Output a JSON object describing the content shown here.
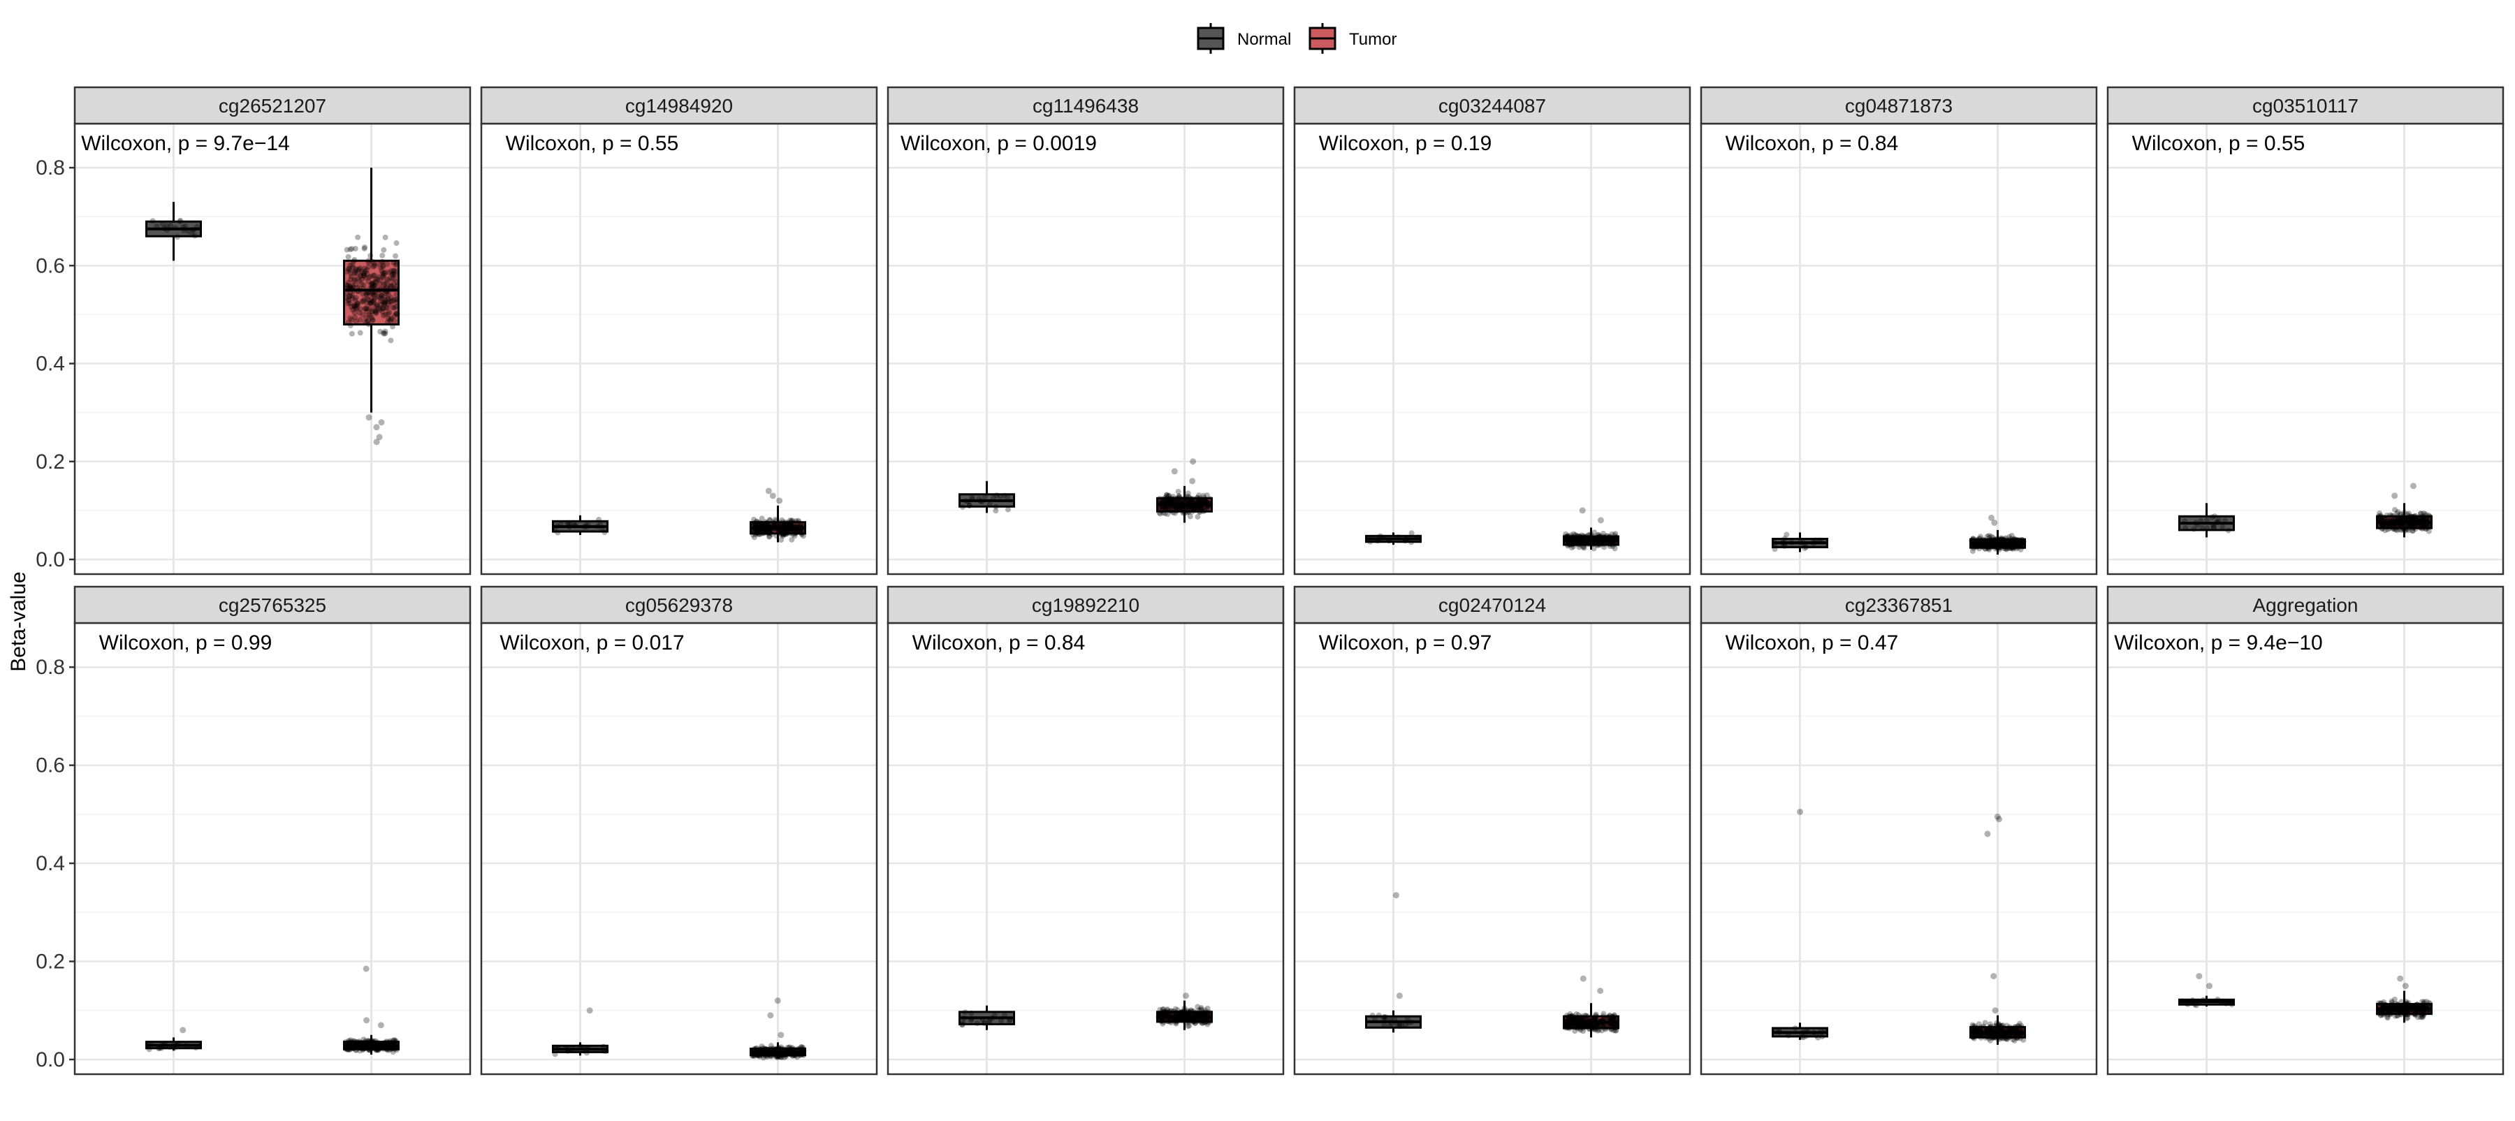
{
  "chart_data": {
    "type": "box",
    "ylabel": "Beta-value",
    "ylim": [
      -0.03,
      0.89
    ],
    "yticks": [
      0.0,
      0.2,
      0.4,
      0.6,
      0.8
    ],
    "ytick_labels": [
      "0.0",
      "0.2",
      "0.4",
      "0.6",
      "0.8"
    ],
    "grid": true,
    "legend": {
      "placement": "top-center",
      "entries": [
        {
          "name": "Normal",
          "color": "#555555"
        },
        {
          "name": "Tumor",
          "color": "#CC5B5F"
        }
      ]
    },
    "groups": [
      "Normal",
      "Tumor"
    ],
    "panels": [
      {
        "title": "cg26521207",
        "annotation": "Wilcoxon, p = 9.7e−14",
        "normal": {
          "min": 0.61,
          "q1": 0.66,
          "median": 0.675,
          "q3": 0.69,
          "max": 0.73,
          "n": 20,
          "outliers": []
        },
        "tumor": {
          "min": 0.3,
          "q1": 0.48,
          "median": 0.55,
          "q3": 0.61,
          "max": 0.8,
          "n": 300,
          "outliers": [
            0.24,
            0.25,
            0.27,
            0.28,
            0.29
          ]
        }
      },
      {
        "title": "cg14984920",
        "annotation": "Wilcoxon, p = 0.55",
        "normal": {
          "min": 0.05,
          "q1": 0.057,
          "median": 0.067,
          "q3": 0.078,
          "max": 0.09,
          "n": 20,
          "outliers": []
        },
        "tumor": {
          "min": 0.035,
          "q1": 0.053,
          "median": 0.064,
          "q3": 0.076,
          "max": 0.11,
          "n": 300,
          "outliers": [
            0.12,
            0.13,
            0.14
          ]
        }
      },
      {
        "title": "cg11496438",
        "annotation": "Wilcoxon, p = 0.0019",
        "normal": {
          "min": 0.095,
          "q1": 0.108,
          "median": 0.12,
          "q3": 0.133,
          "max": 0.16,
          "n": 20,
          "outliers": []
        },
        "tumor": {
          "min": 0.075,
          "q1": 0.098,
          "median": 0.112,
          "q3": 0.125,
          "max": 0.15,
          "n": 300,
          "outliers": [
            0.16,
            0.18,
            0.2
          ]
        }
      },
      {
        "title": "cg03244087",
        "annotation": "Wilcoxon, p = 0.19",
        "normal": {
          "min": 0.03,
          "q1": 0.036,
          "median": 0.042,
          "q3": 0.048,
          "max": 0.055,
          "n": 20,
          "outliers": []
        },
        "tumor": {
          "min": 0.02,
          "q1": 0.03,
          "median": 0.039,
          "q3": 0.047,
          "max": 0.065,
          "n": 300,
          "outliers": [
            0.08,
            0.1
          ]
        }
      },
      {
        "title": "cg04871873",
        "annotation": "Wilcoxon, p = 0.84",
        "normal": {
          "min": 0.015,
          "q1": 0.025,
          "median": 0.034,
          "q3": 0.042,
          "max": 0.055,
          "n": 20,
          "outliers": []
        },
        "tumor": {
          "min": 0.01,
          "q1": 0.024,
          "median": 0.033,
          "q3": 0.041,
          "max": 0.06,
          "n": 300,
          "outliers": [
            0.075,
            0.085
          ]
        }
      },
      {
        "title": "cg03510117",
        "annotation": "Wilcoxon, p = 0.55",
        "normal": {
          "min": 0.045,
          "q1": 0.06,
          "median": 0.074,
          "q3": 0.088,
          "max": 0.115,
          "n": 20,
          "outliers": []
        },
        "tumor": {
          "min": 0.045,
          "q1": 0.064,
          "median": 0.076,
          "q3": 0.088,
          "max": 0.115,
          "n": 300,
          "outliers": [
            0.13,
            0.15
          ]
        }
      },
      {
        "title": "cg25765325",
        "annotation": "Wilcoxon, p = 0.99",
        "normal": {
          "min": 0.018,
          "q1": 0.023,
          "median": 0.029,
          "q3": 0.036,
          "max": 0.045,
          "n": 20,
          "outliers": [
            0.06
          ]
        },
        "tumor": {
          "min": 0.01,
          "q1": 0.021,
          "median": 0.028,
          "q3": 0.036,
          "max": 0.05,
          "n": 300,
          "outliers": [
            0.07,
            0.08,
            0.185
          ]
        }
      },
      {
        "title": "cg05629378",
        "annotation": "Wilcoxon, p = 0.017",
        "normal": {
          "min": 0.008,
          "q1": 0.015,
          "median": 0.021,
          "q3": 0.028,
          "max": 0.035,
          "n": 20,
          "outliers": [
            0.1
          ]
        },
        "tumor": {
          "min": 0.002,
          "q1": 0.009,
          "median": 0.015,
          "q3": 0.022,
          "max": 0.035,
          "n": 300,
          "outliers": [
            0.05,
            0.09,
            0.12
          ]
        }
      },
      {
        "title": "cg19892210",
        "annotation": "Wilcoxon, p = 0.84",
        "normal": {
          "min": 0.06,
          "q1": 0.072,
          "median": 0.085,
          "q3": 0.097,
          "max": 0.11,
          "n": 20,
          "outliers": []
        },
        "tumor": {
          "min": 0.06,
          "q1": 0.077,
          "median": 0.087,
          "q3": 0.097,
          "max": 0.12,
          "n": 300,
          "outliers": [
            0.13
          ]
        }
      },
      {
        "title": "cg02470124",
        "annotation": "Wilcoxon, p = 0.97",
        "normal": {
          "min": 0.055,
          "q1": 0.065,
          "median": 0.077,
          "q3": 0.088,
          "max": 0.1,
          "n": 20,
          "outliers": [
            0.13,
            0.335
          ]
        },
        "tumor": {
          "min": 0.045,
          "q1": 0.064,
          "median": 0.076,
          "q3": 0.088,
          "max": 0.115,
          "n": 300,
          "outliers": [
            0.14,
            0.165
          ]
        }
      },
      {
        "title": "cg23367851",
        "annotation": "Wilcoxon, p = 0.47",
        "normal": {
          "min": 0.04,
          "q1": 0.047,
          "median": 0.055,
          "q3": 0.064,
          "max": 0.075,
          "n": 20,
          "outliers": [
            0.505
          ]
        },
        "tumor": {
          "min": 0.03,
          "q1": 0.045,
          "median": 0.055,
          "q3": 0.066,
          "max": 0.09,
          "n": 300,
          "outliers": [
            0.1,
            0.17,
            0.46,
            0.49,
            0.495
          ]
        }
      },
      {
        "title": "Aggregation",
        "annotation": "Wilcoxon, p = 9.4e−10",
        "normal": {
          "min": 0.108,
          "q1": 0.112,
          "median": 0.118,
          "q3": 0.122,
          "max": 0.13,
          "n": 20,
          "outliers": [
            0.17,
            0.15
          ]
        },
        "tumor": {
          "min": 0.075,
          "q1": 0.093,
          "median": 0.103,
          "q3": 0.113,
          "max": 0.14,
          "n": 300,
          "outliers": [
            0.15,
            0.165
          ]
        }
      }
    ]
  }
}
